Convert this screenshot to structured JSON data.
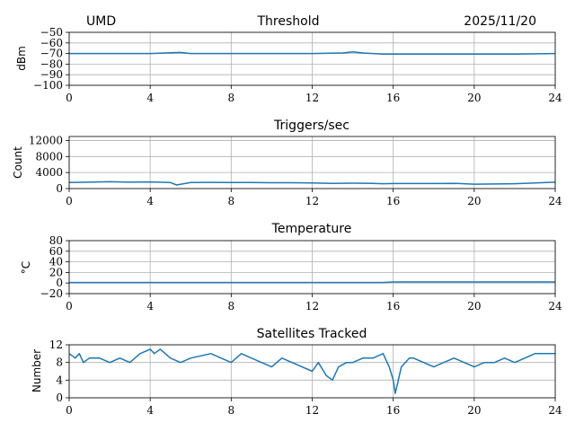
{
  "header": {
    "left": "UMD",
    "right": "2025/11/20"
  },
  "chart_data": [
    {
      "type": "line",
      "title": "Threshold",
      "ylabel": "dBm",
      "xlim": [
        0,
        24
      ],
      "ylim": [
        -100,
        -50
      ],
      "xticks": [
        "0",
        "4",
        "8",
        "12",
        "16",
        "20",
        "24"
      ],
      "yticks": [
        "−50",
        "−60",
        "−70",
        "−80",
        "−90",
        "−100"
      ],
      "grid": true,
      "x": [
        0,
        2,
        4,
        5.5,
        6,
        8,
        10,
        12,
        13.5,
        14,
        14.5,
        15.5,
        16,
        18,
        20,
        22,
        24
      ],
      "values": [
        -70,
        -70,
        -70,
        -69,
        -70,
        -70,
        -70,
        -70,
        -69.5,
        -68.5,
        -69.5,
        -70.5,
        -70.5,
        -70.5,
        -70.5,
        -70.5,
        -70
      ]
    },
    {
      "type": "line",
      "title": "Triggers/sec",
      "ylabel": "Count",
      "xlim": [
        0,
        24
      ],
      "ylim": [
        0,
        13000
      ],
      "xticks": [
        "0",
        "4",
        "8",
        "12",
        "16",
        "20",
        "24"
      ],
      "yticks": [
        "12000",
        "8000",
        "4000",
        "0"
      ],
      "grid": true,
      "x": [
        0,
        1,
        2,
        3,
        4,
        5,
        5.3,
        6,
        7,
        8,
        9,
        10,
        11,
        12,
        13,
        14,
        15,
        15.5,
        16,
        17,
        18,
        19,
        20,
        21,
        22,
        23,
        24
      ],
      "values": [
        1500,
        1600,
        1700,
        1600,
        1650,
        1500,
        900,
        1500,
        1550,
        1500,
        1500,
        1450,
        1450,
        1400,
        1300,
        1350,
        1300,
        1200,
        1250,
        1250,
        1250,
        1300,
        1100,
        1150,
        1200,
        1400,
        1600
      ]
    },
    {
      "type": "line",
      "title": "Temperature",
      "ylabel": "°C",
      "xlim": [
        0,
        24
      ],
      "ylim": [
        -20,
        80
      ],
      "xticks": [
        "0",
        "4",
        "8",
        "12",
        "16",
        "20",
        "24"
      ],
      "yticks": [
        "80",
        "60",
        "40",
        "20",
        "0",
        "−20"
      ],
      "grid": true,
      "x": [
        0,
        4,
        8,
        12,
        15.5,
        16,
        20,
        24
      ],
      "values": [
        1,
        1,
        1,
        1,
        1,
        2,
        2,
        2
      ]
    },
    {
      "type": "line",
      "title": "Satellites Tracked",
      "ylabel": "Number",
      "xlim": [
        0,
        24
      ],
      "ylim": [
        0,
        12
      ],
      "xticks": [
        "0",
        "4",
        "8",
        "12",
        "16",
        "20",
        "24"
      ],
      "yticks": [
        "12",
        "8",
        "4",
        "0"
      ],
      "grid": true,
      "x": [
        0,
        0.3,
        0.5,
        0.7,
        1,
        1.5,
        2,
        2.5,
        3,
        3.5,
        4,
        4.2,
        4.5,
        5,
        5.5,
        6,
        7,
        7.5,
        8,
        8.5,
        9,
        9.5,
        10,
        10.5,
        11,
        11.5,
        12,
        12.3,
        12.7,
        13,
        13.3,
        13.7,
        14,
        14.5,
        15,
        15.5,
        15.8,
        16,
        16.1,
        16.2,
        16.4,
        16.8,
        17,
        17.5,
        18,
        18.5,
        19,
        19.5,
        20,
        20.5,
        21,
        21.5,
        22,
        22.5,
        23,
        23.5,
        24
      ],
      "values": [
        10,
        9,
        10,
        8,
        9,
        9,
        8,
        9,
        8,
        10,
        11,
        10,
        11,
        9,
        8,
        9,
        10,
        9,
        8,
        10,
        9,
        8,
        7,
        9,
        8,
        7,
        6,
        8,
        5,
        4,
        7,
        8,
        8,
        9,
        9,
        10,
        7,
        4,
        1,
        3,
        7,
        9,
        9,
        8,
        7,
        8,
        9,
        8,
        7,
        8,
        8,
        9,
        8,
        9,
        10,
        10,
        10
      ]
    }
  ]
}
